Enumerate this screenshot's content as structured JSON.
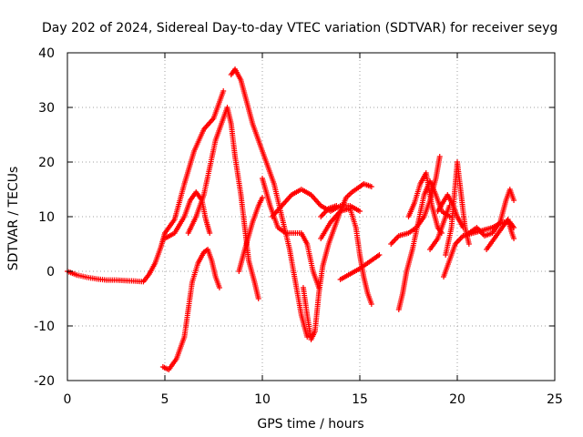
{
  "chart_data": {
    "type": "scatter",
    "title": "Day 202 of 2024, Sidereal Day-to-day VTEC variation (SDTVAR) for receiver seyg",
    "xlabel": "GPS time / hours",
    "ylabel": "SDTVAR / TECUs",
    "xlim": [
      0,
      25
    ],
    "ylim": [
      -20,
      40
    ],
    "x_ticks": [
      0,
      5,
      10,
      15,
      20,
      25
    ],
    "y_ticks": [
      -20,
      -10,
      0,
      10,
      20,
      30,
      40
    ],
    "x_tick_labels": [
      "0",
      "5",
      "10",
      "15",
      "20",
      "25"
    ],
    "y_tick_labels": [
      "-20",
      "-10",
      "0",
      "10",
      "20",
      "30",
      "40"
    ],
    "grid": true,
    "marker": "+",
    "series_color": "#ff0000",
    "series": [
      {
        "name": "track-quiet",
        "points": [
          [
            0.0,
            0.0
          ],
          [
            0.5,
            -0.7
          ],
          [
            1.0,
            -1.1
          ],
          [
            1.5,
            -1.4
          ],
          [
            2.0,
            -1.6
          ],
          [
            2.5,
            -1.6
          ],
          [
            3.0,
            -1.7
          ],
          [
            3.5,
            -1.8
          ],
          [
            3.9,
            -1.9
          ],
          [
            4.2,
            -0.5
          ],
          [
            4.5,
            1.5
          ],
          [
            4.8,
            4.5
          ],
          [
            5.0,
            7.0
          ]
        ]
      },
      {
        "name": "track-rise-a",
        "points": [
          [
            5.0,
            7.0
          ],
          [
            5.5,
            9.5
          ],
          [
            6.0,
            16.0
          ],
          [
            6.5,
            22.0
          ],
          [
            7.0,
            26.0
          ],
          [
            7.5,
            28.0
          ],
          [
            7.8,
            31.0
          ],
          [
            8.0,
            33.0
          ]
        ]
      },
      {
        "name": "track-peak-a",
        "points": [
          [
            6.2,
            7.0
          ],
          [
            6.6,
            10.0
          ],
          [
            7.0,
            14.0
          ],
          [
            7.3,
            19.0
          ],
          [
            7.6,
            24.0
          ],
          [
            8.0,
            28.0
          ],
          [
            8.2,
            30.0
          ],
          [
            8.4,
            27.0
          ],
          [
            8.6,
            21.0
          ],
          [
            8.9,
            14.0
          ],
          [
            9.1,
            8.0
          ],
          [
            9.3,
            2.0
          ],
          [
            9.6,
            -2.0
          ],
          [
            9.8,
            -5.0
          ]
        ]
      },
      {
        "name": "track-peak-b",
        "points": [
          [
            8.4,
            36.0
          ],
          [
            8.6,
            37.0
          ],
          [
            8.9,
            35.0
          ],
          [
            9.2,
            31.0
          ],
          [
            9.5,
            27.0
          ],
          [
            9.8,
            24.0
          ],
          [
            10.2,
            20.0
          ],
          [
            10.6,
            16.0
          ],
          [
            11.0,
            10.0
          ],
          [
            11.4,
            4.0
          ],
          [
            11.7,
            -2.0
          ],
          [
            12.0,
            -8.0
          ],
          [
            12.3,
            -12.0
          ]
        ]
      },
      {
        "name": "track-lower",
        "points": [
          [
            4.9,
            -17.5
          ],
          [
            5.2,
            -18.0
          ],
          [
            5.6,
            -16.0
          ],
          [
            6.0,
            -12.0
          ],
          [
            6.2,
            -7.0
          ],
          [
            6.4,
            -2.0
          ],
          [
            6.7,
            1.5
          ],
          [
            7.0,
            3.5
          ],
          [
            7.2,
            4.0
          ],
          [
            7.4,
            2.0
          ],
          [
            7.6,
            -1.0
          ],
          [
            7.8,
            -3.0
          ]
        ]
      },
      {
        "name": "track-hump",
        "points": [
          [
            5.0,
            6.0
          ],
          [
            5.5,
            7.0
          ],
          [
            6.0,
            10.0
          ],
          [
            6.3,
            13.0
          ],
          [
            6.6,
            14.5
          ],
          [
            6.9,
            13.0
          ],
          [
            7.1,
            9.5
          ],
          [
            7.3,
            7.0
          ]
        ]
      },
      {
        "name": "track-mid",
        "points": [
          [
            8.8,
            0.0
          ],
          [
            9.1,
            4.0
          ],
          [
            9.5,
            9.0
          ],
          [
            9.8,
            12.0
          ],
          [
            10.0,
            13.5
          ]
        ]
      },
      {
        "name": "track-cross-a",
        "points": [
          [
            10.0,
            17.0
          ],
          [
            10.4,
            12.0
          ],
          [
            10.8,
            8.0
          ],
          [
            11.2,
            7.0
          ],
          [
            11.6,
            7.0
          ],
          [
            12.0,
            7.0
          ],
          [
            12.3,
            5.0
          ],
          [
            12.6,
            0.0
          ],
          [
            12.9,
            -3.0
          ]
        ]
      },
      {
        "name": "track-cross-b",
        "points": [
          [
            10.5,
            10.0
          ],
          [
            11.0,
            12.0
          ],
          [
            11.5,
            14.0
          ],
          [
            12.0,
            15.0
          ],
          [
            12.5,
            14.0
          ],
          [
            13.0,
            12.0
          ],
          [
            13.5,
            11.0
          ],
          [
            14.0,
            12.0
          ],
          [
            14.5,
            12.0
          ],
          [
            15.0,
            11.0
          ]
        ]
      },
      {
        "name": "track-dip",
        "points": [
          [
            12.1,
            -3.0
          ],
          [
            12.3,
            -8.0
          ],
          [
            12.5,
            -12.5
          ],
          [
            12.7,
            -11.0
          ],
          [
            12.9,
            -4.0
          ],
          [
            13.1,
            1.0
          ],
          [
            13.4,
            5.0
          ],
          [
            13.8,
            9.0
          ],
          [
            14.0,
            11.0
          ],
          [
            14.3,
            13.5
          ],
          [
            14.6,
            14.5
          ],
          [
            15.0,
            15.5
          ],
          [
            15.2,
            16.0
          ],
          [
            15.6,
            15.5
          ]
        ]
      },
      {
        "name": "track-fall",
        "points": [
          [
            13.0,
            6.0
          ],
          [
            13.5,
            9.0
          ],
          [
            14.0,
            11.0
          ],
          [
            14.5,
            11.5
          ],
          [
            14.8,
            8.0
          ],
          [
            15.0,
            3.0
          ],
          [
            15.2,
            -1.0
          ],
          [
            15.4,
            -4.0
          ],
          [
            15.6,
            -6.0
          ]
        ]
      },
      {
        "name": "track-short",
        "points": [
          [
            14.0,
            -1.5
          ],
          [
            14.5,
            -0.5
          ],
          [
            15.0,
            0.5
          ],
          [
            15.4,
            1.5
          ],
          [
            15.8,
            2.5
          ],
          [
            16.0,
            3.0
          ]
        ]
      },
      {
        "name": "track-gap",
        "points": [
          [
            13.0,
            10.0
          ],
          [
            13.4,
            11.5
          ],
          [
            13.8,
            12.0
          ]
        ]
      },
      {
        "name": "track-late-a",
        "points": [
          [
            16.6,
            5.0
          ],
          [
            17.0,
            6.5
          ],
          [
            17.5,
            7.0
          ],
          [
            17.9,
            8.0
          ],
          [
            18.3,
            10.0
          ],
          [
            18.6,
            13.0
          ],
          [
            18.9,
            17.0
          ],
          [
            19.1,
            21.0
          ]
        ]
      },
      {
        "name": "track-late-b",
        "points": [
          [
            17.0,
            -7.0
          ],
          [
            17.2,
            -4.0
          ],
          [
            17.4,
            0.0
          ],
          [
            17.7,
            4.0
          ],
          [
            18.0,
            9.0
          ],
          [
            18.3,
            14.0
          ],
          [
            18.6,
            16.5
          ],
          [
            18.9,
            14.0
          ],
          [
            19.2,
            11.0
          ],
          [
            19.6,
            10.0
          ]
        ]
      },
      {
        "name": "track-late-c",
        "points": [
          [
            17.5,
            10.0
          ],
          [
            17.8,
            12.5
          ],
          [
            18.1,
            16.0
          ],
          [
            18.4,
            18.0
          ],
          [
            18.7,
            12.0
          ],
          [
            19.0,
            8.0
          ],
          [
            19.2,
            7.0
          ]
        ]
      },
      {
        "name": "track-late-d",
        "points": [
          [
            19.4,
            3.0
          ],
          [
            19.7,
            8.0
          ],
          [
            19.9,
            16.0
          ],
          [
            20.0,
            20.0
          ],
          [
            20.2,
            14.0
          ],
          [
            20.4,
            8.0
          ],
          [
            20.6,
            5.0
          ]
        ]
      },
      {
        "name": "track-late-e",
        "points": [
          [
            19.3,
            -1.0
          ],
          [
            19.6,
            2.0
          ],
          [
            19.9,
            5.0
          ],
          [
            20.3,
            6.5
          ],
          [
            20.8,
            7.0
          ],
          [
            21.3,
            7.5
          ],
          [
            21.8,
            8.0
          ],
          [
            22.3,
            9.0
          ],
          [
            22.7,
            9.0
          ],
          [
            22.9,
            8.0
          ]
        ]
      },
      {
        "name": "track-late-f",
        "points": [
          [
            20.6,
            7.0
          ],
          [
            21.0,
            8.0
          ],
          [
            21.4,
            6.5
          ],
          [
            21.8,
            7.0
          ],
          [
            22.2,
            9.0
          ],
          [
            22.5,
            13.0
          ],
          [
            22.7,
            15.0
          ],
          [
            22.9,
            13.0
          ]
        ]
      },
      {
        "name": "track-late-g",
        "points": [
          [
            21.5,
            4.0
          ],
          [
            21.9,
            6.0
          ],
          [
            22.3,
            8.0
          ],
          [
            22.6,
            9.5
          ],
          [
            22.8,
            7.0
          ],
          [
            22.9,
            6.0
          ]
        ]
      },
      {
        "name": "track-late-h",
        "points": [
          [
            19.0,
            11.0
          ],
          [
            19.5,
            14.0
          ],
          [
            19.8,
            12.0
          ],
          [
            20.0,
            10.0
          ],
          [
            20.3,
            8.0
          ]
        ]
      },
      {
        "name": "track-late-i",
        "points": [
          [
            18.6,
            4.0
          ],
          [
            19.0,
            6.0
          ],
          [
            19.3,
            9.0
          ],
          [
            19.6,
            12.0
          ]
        ]
      }
    ]
  }
}
